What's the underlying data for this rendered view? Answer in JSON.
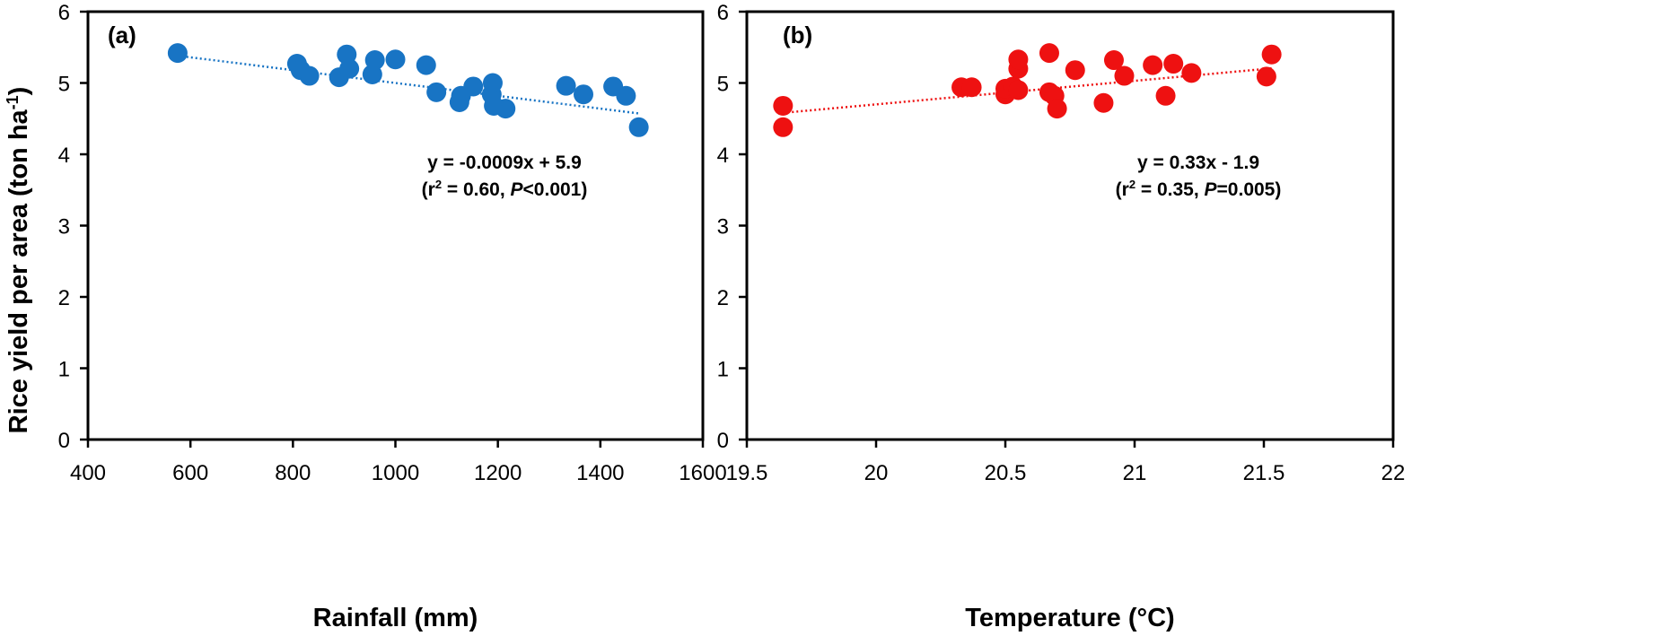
{
  "figure": {
    "ylabel_main": "Rice yield per area (ton ha",
    "ylabel_sup": "-1",
    "ylabel_close": ")"
  },
  "colors": {
    "panel_a": "#1874c4",
    "panel_b": "#ee1111",
    "axis": "#000000"
  },
  "chart_data": [
    {
      "type": "scatter",
      "panel_label": "(a)",
      "xlabel": "Rainfall (mm)",
      "ylabel": "Rice yield per area (ton ha-1)",
      "xlim": [
        400,
        1600
      ],
      "ylim": [
        0,
        6
      ],
      "xticks": [
        400,
        600,
        800,
        1000,
        1200,
        1400,
        1600
      ],
      "xtick_labels": [
        "400",
        "600",
        "800",
        "1000",
        "1200",
        "1400",
        "1600"
      ],
      "yticks": [
        0,
        1,
        2,
        3,
        4,
        5,
        6
      ],
      "ytick_labels": [
        "0",
        "1",
        "2",
        "3",
        "4",
        "5",
        "6"
      ],
      "color": "#1874c4",
      "trendline": {
        "slope": -0.0009,
        "intercept": 5.9,
        "x_range": [
          575,
          1475
        ]
      },
      "annotation": {
        "equation": "y = -0.0009x + 5.9",
        "stat_prefix": "(r",
        "stat_sup": "2",
        "stat_mid": " = 0.60, ",
        "stat_italic": "P",
        "stat_suffix": "<0.001)"
      },
      "points": [
        [
          575,
          5.42
        ],
        [
          808,
          5.27
        ],
        [
          815,
          5.18
        ],
        [
          832,
          5.1
        ],
        [
          890,
          5.08
        ],
        [
          905,
          5.4
        ],
        [
          910,
          5.2
        ],
        [
          955,
          5.12
        ],
        [
          960,
          5.32
        ],
        [
          1000,
          5.33
        ],
        [
          1060,
          5.25
        ],
        [
          1080,
          4.87
        ],
        [
          1125,
          4.73
        ],
        [
          1128,
          4.82
        ],
        [
          1152,
          4.95
        ],
        [
          1188,
          4.84
        ],
        [
          1190,
          5.0
        ],
        [
          1192,
          4.68
        ],
        [
          1215,
          4.64
        ],
        [
          1333,
          4.96
        ],
        [
          1367,
          4.84
        ],
        [
          1425,
          4.95
        ],
        [
          1450,
          4.82
        ],
        [
          1475,
          4.38
        ]
      ]
    },
    {
      "type": "scatter",
      "panel_label": "(b)",
      "xlabel": "Temperature (°C)",
      "ylabel": "Rice yield per area (ton ha-1)",
      "xlim": [
        19.5,
        22
      ],
      "ylim": [
        0,
        6
      ],
      "xticks": [
        19.5,
        20,
        20.5,
        21,
        21.5,
        22
      ],
      "xtick_labels": [
        "19.5",
        "20",
        "20.5",
        "21",
        "21.5",
        "22"
      ],
      "yticks": [
        0,
        1,
        2,
        3,
        4,
        5,
        6
      ],
      "ytick_labels": [
        "0",
        "1",
        "2",
        "3",
        "4",
        "5",
        "6"
      ],
      "color": "#ee1111",
      "trendline": {
        "slope": 0.33,
        "intercept": -1.9,
        "x_range": [
          19.64,
          21.53
        ]
      },
      "annotation": {
        "equation": "y = 0.33x - 1.9",
        "stat_prefix": "(r",
        "stat_sup": "2",
        "stat_mid": " = 0.35, ",
        "stat_italic": "P",
        "stat_suffix": "=0.005)"
      },
      "points": [
        [
          19.64,
          4.68
        ],
        [
          19.64,
          4.38
        ],
        [
          20.33,
          4.94
        ],
        [
          20.37,
          4.94
        ],
        [
          20.5,
          4.84
        ],
        [
          20.5,
          4.92
        ],
        [
          20.53,
          4.95
        ],
        [
          20.55,
          4.9
        ],
        [
          20.55,
          5.2
        ],
        [
          20.55,
          5.33
        ],
        [
          20.67,
          5.42
        ],
        [
          20.67,
          4.87
        ],
        [
          20.69,
          4.82
        ],
        [
          20.7,
          4.64
        ],
        [
          20.77,
          5.18
        ],
        [
          20.88,
          4.72
        ],
        [
          20.92,
          5.32
        ],
        [
          20.96,
          5.1
        ],
        [
          21.07,
          5.25
        ],
        [
          21.12,
          4.82
        ],
        [
          21.15,
          5.27
        ],
        [
          21.22,
          5.14
        ],
        [
          21.51,
          5.09
        ],
        [
          21.53,
          5.4
        ]
      ]
    }
  ]
}
